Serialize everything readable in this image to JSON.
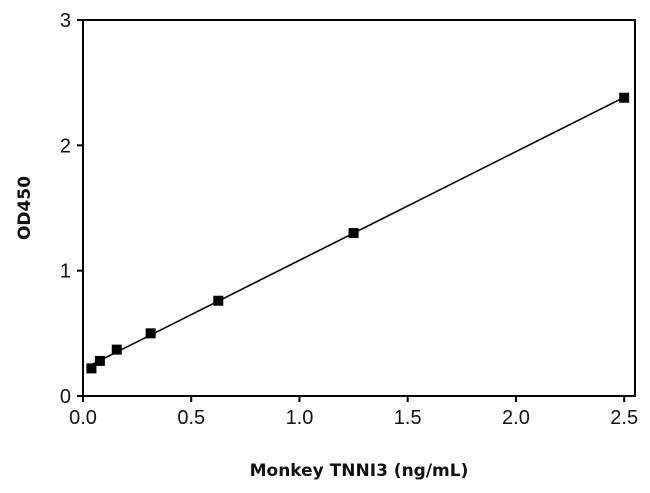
{
  "chart_data": {
    "type": "scatter",
    "xlabel": "Monkey TNNI3 (ng/mL)",
    "ylabel": "OD450",
    "xlim": [
      0,
      2.55
    ],
    "ylim": [
      0,
      3
    ],
    "x_ticks": [
      "0.0",
      "0.5",
      "1.0",
      "1.5",
      "2.0",
      "2.5"
    ],
    "y_ticks": [
      "0",
      "1",
      "2",
      "3"
    ],
    "grid": false,
    "legend": "none",
    "series": [
      {
        "x": [
          0.039,
          0.078,
          0.156,
          0.3125,
          0.625,
          1.25,
          2.5
        ],
        "y": [
          0.22,
          0.28,
          0.37,
          0.5,
          0.76,
          1.3,
          2.38
        ],
        "fit": "linear"
      }
    ],
    "colors": {
      "marker": "#000000",
      "line": "#000000"
    }
  }
}
